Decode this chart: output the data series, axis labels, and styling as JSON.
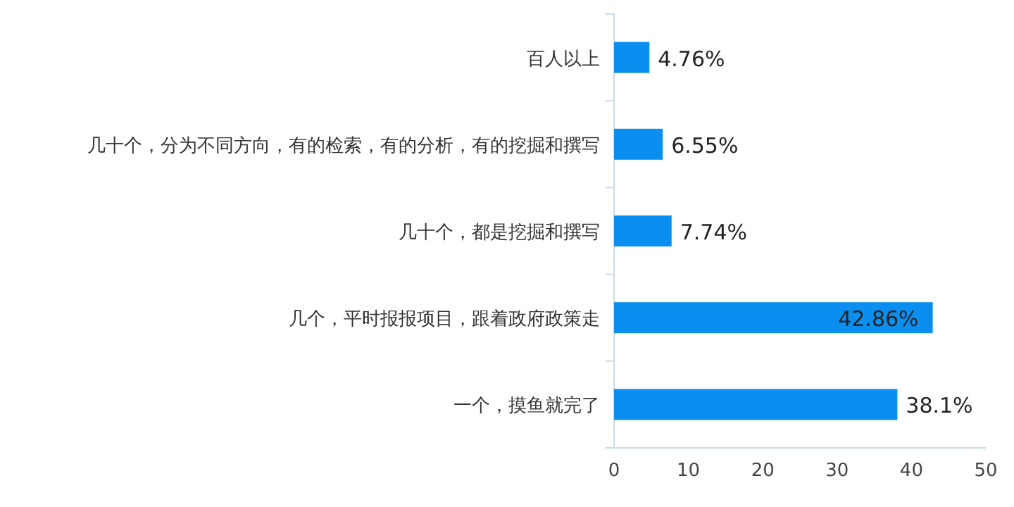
{
  "chart_data": {
    "type": "bar",
    "orientation": "horizontal",
    "categories": [
      "百人以上",
      "几十个，分为不同方向，有的检索，有的分析，有的挖掘和撰写",
      "几十个，都是挖掘和撰写",
      "几个，平时报报项目，跟着政府政策走",
      "一个，摸鱼就完了"
    ],
    "values": [
      4.76,
      6.55,
      7.74,
      42.86,
      38.1
    ],
    "value_labels": [
      "4.76%",
      "6.55%",
      "7.74%",
      "42.86%",
      "38.1%"
    ],
    "color": "#0a8ff0",
    "xlim": [
      0,
      50
    ],
    "xticks": [
      0,
      10,
      20,
      30,
      40,
      50
    ],
    "grid": false
  }
}
